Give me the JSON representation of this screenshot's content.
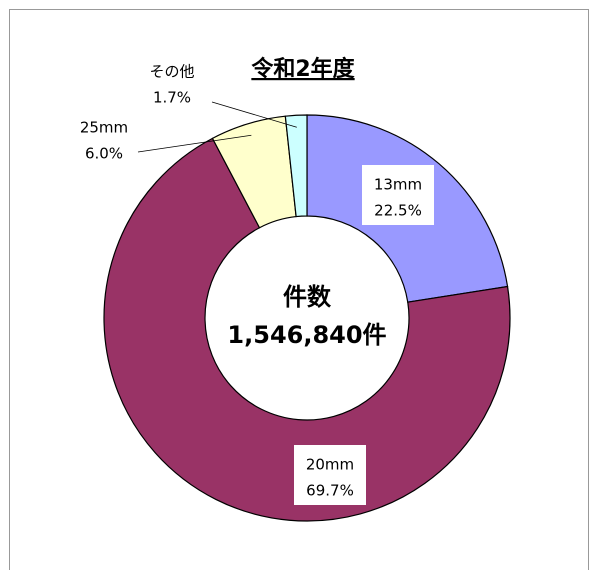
{
  "chart_data": {
    "type": "donut",
    "title": "令和2年度",
    "categories": [
      "13mm",
      "20mm",
      "25mm",
      "その他"
    ],
    "values": [
      22.5,
      69.7,
      6.0,
      1.7
    ],
    "value_labels": [
      "22.5%",
      "69.7%",
      "6.0%",
      "1.7%"
    ],
    "colors": [
      "#9999ff",
      "#993366",
      "#ffffcc",
      "#ccffff"
    ],
    "center_label": [
      "件数",
      "1,546,840件"
    ]
  }
}
